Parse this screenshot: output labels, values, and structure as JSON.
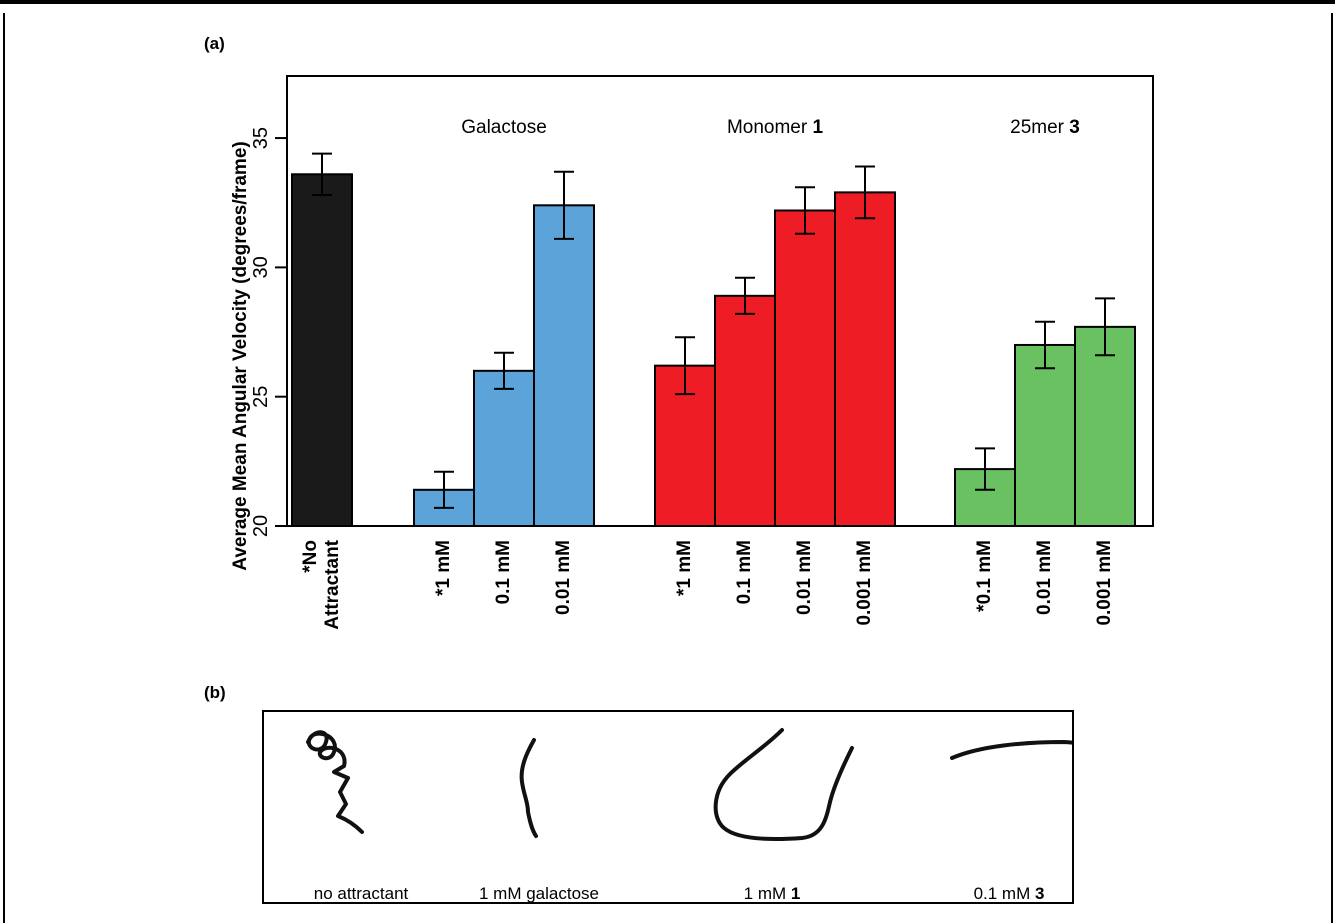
{
  "panel_a_label": "(a)",
  "panel_b_label": "(b)",
  "chart_data": {
    "type": "bar",
    "ylabel": "Average Mean Angular Velocity (degrees/frame)",
    "ylim": [
      20,
      37.4
    ],
    "yticks": [
      "20",
      "25",
      "30",
      "35"
    ],
    "groups": [
      {
        "name": "",
        "name_bold": "",
        "color": "#1a1a1a",
        "bars": [
          {
            "category": "*No\nAttractant",
            "value": 33.6,
            "err": 0.8
          }
        ]
      },
      {
        "name": "Galactose",
        "name_bold": "",
        "color": "#5ba3d9",
        "bars": [
          {
            "category": "*1 mM",
            "value": 21.4,
            "err": 0.7
          },
          {
            "category": "0.1 mM",
            "value": 26.0,
            "err": 0.7
          },
          {
            "category": "0.01 mM",
            "value": 32.4,
            "err": 1.3
          }
        ]
      },
      {
        "name": "Monomer ",
        "name_bold": "1",
        "color": "#ee1c25",
        "bars": [
          {
            "category": "*1 mM",
            "value": 26.2,
            "err": 1.1
          },
          {
            "category": "0.1 mM",
            "value": 28.9,
            "err": 0.7
          },
          {
            "category": "0.01 mM",
            "value": 32.2,
            "err": 0.9
          },
          {
            "category": "0.001 mM",
            "value": 32.9,
            "err": 1.0
          }
        ]
      },
      {
        "name": "25mer ",
        "name_bold": "3",
        "color": "#6ac162",
        "bars": [
          {
            "category": "*0.1 mM",
            "value": 22.2,
            "err": 0.8
          },
          {
            "category": "0.01 mM",
            "value": 27.0,
            "err": 0.9
          },
          {
            "category": "0.001 mM",
            "value": 27.7,
            "err": 1.1
          }
        ]
      }
    ]
  },
  "trajectories": [
    {
      "label": "no attractant",
      "label_bold": ""
    },
    {
      "label": "1 mM galactose",
      "label_bold": ""
    },
    {
      "label": "1 mM ",
      "label_bold": "1"
    },
    {
      "label": "0.1 mM ",
      "label_bold": "3"
    }
  ]
}
